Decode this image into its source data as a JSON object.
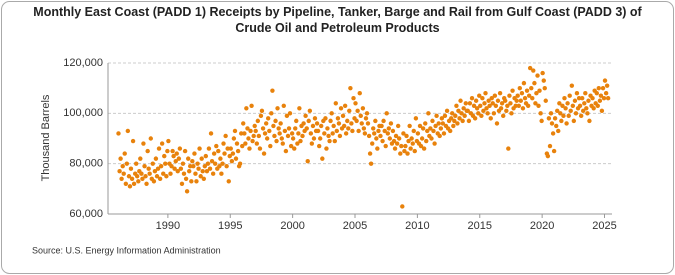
{
  "chart_data": {
    "type": "scatter",
    "title": "Monthly East Coast (PADD 1) Receipts by Pipeline, Tanker, Barge and Rail from Gulf Coast (PADD 3) of Crude Oil and Petroleum Products",
    "y_label": "Thousand Barrels",
    "source": "Source: U.S. Energy Information Administration",
    "color": "#e8820c",
    "grid": true,
    "xlim": [
      1985.2,
      2025.6
    ],
    "xticks": [
      1990,
      1995,
      2000,
      2005,
      2010,
      2015,
      2020,
      2025
    ],
    "ylim": [
      60000,
      120000
    ],
    "yticks": [
      {
        "value": 60000,
        "label": "60,000"
      },
      {
        "value": 80000,
        "label": "80,000"
      },
      {
        "value": 100000,
        "label": "100,000"
      },
      {
        "value": 120000,
        "label": "120,000"
      }
    ],
    "x": [
      1986.04,
      1986.13,
      1986.21,
      1986.29,
      1986.38,
      1986.46,
      1986.54,
      1986.63,
      1986.71,
      1986.79,
      1986.88,
      1986.96,
      1987.04,
      1987.13,
      1987.21,
      1987.29,
      1987.38,
      1987.46,
      1987.54,
      1987.63,
      1987.71,
      1987.79,
      1987.88,
      1987.96,
      1988.04,
      1988.13,
      1988.21,
      1988.29,
      1988.38,
      1988.46,
      1988.54,
      1988.63,
      1988.71,
      1988.79,
      1988.88,
      1988.96,
      1989.04,
      1989.13,
      1989.21,
      1989.29,
      1989.38,
      1989.46,
      1989.54,
      1989.63,
      1989.71,
      1989.79,
      1989.88,
      1989.96,
      1990.04,
      1990.13,
      1990.21,
      1990.29,
      1990.38,
      1990.46,
      1990.54,
      1990.63,
      1990.71,
      1990.79,
      1990.88,
      1990.96,
      1991.04,
      1991.13,
      1991.21,
      1991.29,
      1991.38,
      1991.46,
      1991.54,
      1991.63,
      1991.71,
      1991.79,
      1991.88,
      1991.96,
      1992.04,
      1992.13,
      1992.21,
      1992.29,
      1992.38,
      1992.46,
      1992.54,
      1992.63,
      1992.71,
      1992.79,
      1992.88,
      1992.96,
      1993.04,
      1993.13,
      1993.21,
      1993.29,
      1993.38,
      1993.46,
      1993.54,
      1993.63,
      1993.71,
      1993.79,
      1993.88,
      1993.96,
      1994.04,
      1994.13,
      1994.21,
      1994.29,
      1994.38,
      1994.46,
      1994.54,
      1994.63,
      1994.71,
      1994.79,
      1994.88,
      1994.96,
      1995.04,
      1995.13,
      1995.21,
      1995.29,
      1995.38,
      1995.46,
      1995.54,
      1995.63,
      1995.71,
      1995.79,
      1995.88,
      1995.96,
      1996.04,
      1996.13,
      1996.21,
      1996.29,
      1996.38,
      1996.46,
      1996.54,
      1996.63,
      1996.71,
      1996.79,
      1996.88,
      1996.96,
      1997.04,
      1997.13,
      1997.21,
      1997.29,
      1997.38,
      1997.46,
      1997.54,
      1997.63,
      1997.71,
      1997.79,
      1997.88,
      1997.96,
      1998.04,
      1998.13,
      1998.21,
      1998.29,
      1998.38,
      1998.46,
      1998.54,
      1998.63,
      1998.71,
      1998.79,
      1998.88,
      1998.96,
      1999.04,
      1999.13,
      1999.21,
      1999.29,
      1999.38,
      1999.46,
      1999.54,
      1999.63,
      1999.71,
      1999.79,
      1999.88,
      1999.96,
      2000.04,
      2000.13,
      2000.21,
      2000.29,
      2000.38,
      2000.46,
      2000.54,
      2000.63,
      2000.71,
      2000.79,
      2000.88,
      2000.96,
      2001.04,
      2001.13,
      2001.21,
      2001.29,
      2001.38,
      2001.46,
      2001.54,
      2001.63,
      2001.71,
      2001.79,
      2001.88,
      2001.96,
      2002.04,
      2002.13,
      2002.21,
      2002.29,
      2002.38,
      2002.46,
      2002.54,
      2002.63,
      2002.71,
      2002.79,
      2002.88,
      2002.96,
      2003.04,
      2003.13,
      2003.21,
      2003.29,
      2003.38,
      2003.46,
      2003.54,
      2003.63,
      2003.71,
      2003.79,
      2003.88,
      2003.96,
      2004.04,
      2004.13,
      2004.21,
      2004.29,
      2004.38,
      2004.46,
      2004.54,
      2004.63,
      2004.71,
      2004.79,
      2004.88,
      2004.96,
      2005.04,
      2005.13,
      2005.21,
      2005.29,
      2005.38,
      2005.46,
      2005.54,
      2005.63,
      2005.71,
      2005.79,
      2005.88,
      2005.96,
      2006.04,
      2006.13,
      2006.21,
      2006.29,
      2006.38,
      2006.46,
      2006.54,
      2006.63,
      2006.71,
      2006.79,
      2006.88,
      2006.96,
      2007.04,
      2007.13,
      2007.21,
      2007.29,
      2007.38,
      2007.46,
      2007.54,
      2007.63,
      2007.71,
      2007.79,
      2007.88,
      2007.96,
      2008.04,
      2008.13,
      2008.21,
      2008.29,
      2008.38,
      2008.46,
      2008.54,
      2008.63,
      2008.71,
      2008.79,
      2008.88,
      2008.96,
      2009.04,
      2009.13,
      2009.21,
      2009.29,
      2009.38,
      2009.46,
      2009.54,
      2009.63,
      2009.71,
      2009.79,
      2009.88,
      2009.96,
      2010.04,
      2010.13,
      2010.21,
      2010.29,
      2010.38,
      2010.46,
      2010.54,
      2010.63,
      2010.71,
      2010.79,
      2010.88,
      2010.96,
      2011.04,
      2011.13,
      2011.21,
      2011.29,
      2011.38,
      2011.46,
      2011.54,
      2011.63,
      2011.71,
      2011.79,
      2011.88,
      2011.96,
      2012.04,
      2012.13,
      2012.21,
      2012.29,
      2012.38,
      2012.46,
      2012.54,
      2012.63,
      2012.71,
      2012.79,
      2012.88,
      2012.96,
      2013.04,
      2013.13,
      2013.21,
      2013.29,
      2013.38,
      2013.46,
      2013.54,
      2013.63,
      2013.71,
      2013.79,
      2013.88,
      2013.96,
      2014.04,
      2014.13,
      2014.21,
      2014.29,
      2014.38,
      2014.46,
      2014.54,
      2014.63,
      2014.71,
      2014.79,
      2014.88,
      2014.96,
      2015.04,
      2015.13,
      2015.21,
      2015.29,
      2015.38,
      2015.46,
      2015.54,
      2015.63,
      2015.71,
      2015.79,
      2015.88,
      2015.96,
      2016.04,
      2016.13,
      2016.21,
      2016.29,
      2016.38,
      2016.46,
      2016.54,
      2016.63,
      2016.71,
      2016.79,
      2016.88,
      2016.96,
      2017.04,
      2017.13,
      2017.21,
      2017.29,
      2017.38,
      2017.46,
      2017.54,
      2017.63,
      2017.71,
      2017.79,
      2017.88,
      2017.96,
      2018.04,
      2018.13,
      2018.21,
      2018.29,
      2018.38,
      2018.46,
      2018.54,
      2018.63,
      2018.71,
      2018.79,
      2018.88,
      2018.96,
      2019.04,
      2019.13,
      2019.21,
      2019.29,
      2019.38,
      2019.46,
      2019.54,
      2019.63,
      2019.71,
      2019.79,
      2019.88,
      2019.96,
      2020.04,
      2020.13,
      2020.21,
      2020.29,
      2020.38,
      2020.46,
      2020.54,
      2020.63,
      2020.71,
      2020.79,
      2020.88,
      2020.96,
      2021.04,
      2021.13,
      2021.21,
      2021.29,
      2021.38,
      2021.46,
      2021.54,
      2021.63,
      2021.71,
      2021.79,
      2021.88,
      2021.96,
      2022.04,
      2022.13,
      2022.21,
      2022.29,
      2022.38,
      2022.46,
      2022.54,
      2022.63,
      2022.71,
      2022.79,
      2022.88,
      2022.96,
      2023.04,
      2023.13,
      2023.21,
      2023.29,
      2023.38,
      2023.46,
      2023.54,
      2023.63,
      2023.71,
      2023.79,
      2023.88,
      2023.96,
      2024.04,
      2024.13,
      2024.21,
      2024.29,
      2024.38,
      2024.46,
      2024.54,
      2024.63,
      2024.71,
      2024.79,
      2024.88,
      2024.96,
      2025.04,
      2025.13,
      2025.21,
      2025.29
    ],
    "values": [
      92000,
      77000,
      82000,
      74000,
      79000,
      76000,
      84000,
      72000,
      80000,
      93000,
      75000,
      71000,
      78000,
      74000,
      89000,
      72000,
      76000,
      80000,
      75000,
      73000,
      77000,
      82000,
      76000,
      74000,
      88000,
      79000,
      75000,
      72000,
      85000,
      78000,
      76000,
      90000,
      74000,
      80000,
      73000,
      77000,
      82000,
      75000,
      78000,
      86000,
      74000,
      79000,
      88000,
      76000,
      83000,
      80000,
      75000,
      85000,
      89000,
      80000,
      76000,
      79000,
      85000,
      83000,
      78000,
      81000,
      84000,
      77000,
      82000,
      86000,
      78000,
      72000,
      80000,
      76000,
      85000,
      74000,
      69000,
      82000,
      77000,
      79000,
      73000,
      81000,
      79000,
      84000,
      76000,
      73000,
      80000,
      78000,
      86000,
      75000,
      82000,
      77000,
      74000,
      79000,
      83000,
      77000,
      80000,
      86000,
      78000,
      92000,
      81000,
      76000,
      84000,
      80000,
      87000,
      78000,
      85000,
      79000,
      82000,
      76000,
      80000,
      88000,
      84000,
      91000,
      79000,
      86000,
      73000,
      83000,
      86000,
      81000,
      84000,
      90000,
      93000,
      82000,
      88000,
      85000,
      79000,
      80000,
      92000,
      87000,
      96000,
      92000,
      88000,
      102000,
      94000,
      90000,
      86000,
      93000,
      103000,
      89000,
      91000,
      95000,
      93000,
      88000,
      97000,
      91000,
      86000,
      99000,
      101000,
      94000,
      84000,
      92000,
      96000,
      90000,
      98000,
      93000,
      87000,
      100000,
      109000,
      95000,
      91000,
      97000,
      89000,
      102000,
      94000,
      92000,
      96000,
      90000,
      88000,
      103000,
      93000,
      85000,
      99000,
      91000,
      94000,
      100000,
      87000,
      92000,
      90000,
      86000,
      94000,
      97000,
      88000,
      92000,
      102000,
      89000,
      95000,
      91000,
      96000,
      93000,
      99000,
      94000,
      81000,
      97000,
      101000,
      92000,
      88000,
      95000,
      90000,
      98000,
      93000,
      96000,
      93000,
      87000,
      90000,
      95000,
      82000,
      97000,
      92000,
      98000,
      86000,
      94000,
      91000,
      89000,
      97000,
      100000,
      92000,
      95000,
      89000,
      104000,
      93000,
      98000,
      96000,
      91000,
      102000,
      94000,
      99000,
      95000,
      103000,
      92000,
      97000,
      94000,
      101000,
      110000,
      96000,
      93000,
      106000,
      98000,
      104000,
      97000,
      101000,
      93000,
      108000,
      99000,
      96000,
      102000,
      94000,
      92000,
      98000,
      100000,
      96000,
      91000,
      84000,
      80000,
      88000,
      94000,
      92000,
      97000,
      90000,
      86000,
      93000,
      95000,
      91000,
      95000,
      89000,
      97000,
      93000,
      87000,
      100000,
      92000,
      94000,
      90000,
      96000,
      88000,
      93000,
      89000,
      86000,
      91000,
      88000,
      95000,
      90000,
      84000,
      87000,
      63000,
      92000,
      85000,
      87000,
      91000,
      84000,
      89000,
      95000,
      86000,
      90000,
      88000,
      93000,
      85000,
      98000,
      89000,
      92000,
      88000,
      95000,
      87000,
      90000,
      94000,
      86000,
      96000,
      89000,
      93000,
      100000,
      91000,
      94000,
      90000,
      97000,
      93000,
      88000,
      95000,
      99000,
      92000,
      96000,
      91000,
      94000,
      98000,
      96000,
      92000,
      99000,
      95000,
      101000,
      94000,
      97000,
      93000,
      98000,
      100000,
      95000,
      97000,
      99000,
      103000,
      96000,
      101000,
      98000,
      105000,
      100000,
      97000,
      102000,
      99000,
      104000,
      101000,
      101000,
      97000,
      104000,
      100000,
      106000,
      99000,
      103000,
      98000,
      105000,
      102000,
      100000,
      107000,
      103000,
      99000,
      106000,
      101000,
      104000,
      108000,
      102000,
      100000,
      105000,
      103000,
      98000,
      106000,
      104000,
      100000,
      107000,
      103000,
      96000,
      105000,
      101000,
      108000,
      102000,
      104000,
      99000,
      106000,
      105000,
      101000,
      103000,
      86000,
      107000,
      104000,
      100000,
      109000,
      102000,
      106000,
      103000,
      105000,
      107000,
      103000,
      110000,
      105000,
      108000,
      102000,
      112000,
      106000,
      104000,
      109000,
      103000,
      107000,
      118000,
      110000,
      106000,
      117000,
      112000,
      104000,
      108000,
      115000,
      103000,
      109000,
      100000,
      97000,
      116000,
      113000,
      110000,
      105000,
      84000,
      83000,
      98000,
      87000,
      100000,
      96000,
      92000,
      85000,
      98000,
      95000,
      101000,
      93000,
      104000,
      100000,
      97000,
      103000,
      99000,
      106000,
      102000,
      96000,
      104000,
      99000,
      107000,
      101000,
      111000,
      103000,
      97000,
      105000,
      100000,
      108000,
      102000,
      106000,
      103000,
      99000,
      106000,
      101000,
      104000,
      108000,
      102000,
      100000,
      105000,
      97000,
      107000,
      103000,
      106000,
      102000,
      109000,
      104000,
      108000,
      103000,
      110000,
      105000,
      107000,
      101000,
      110000,
      106000,
      113000,
      108000,
      111000,
      106000
    ]
  }
}
